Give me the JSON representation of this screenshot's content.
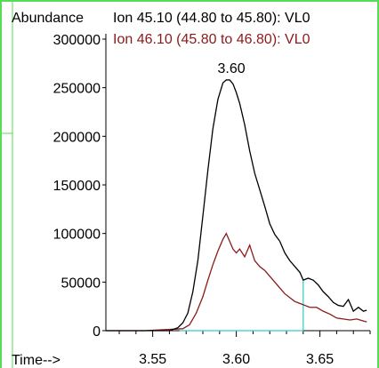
{
  "chart_data": {
    "type": "line",
    "ylabel": "Abundance",
    "xlabel": "Time-->",
    "xlim": [
      3.522,
      3.68
    ],
    "ylim": [
      0,
      300000
    ],
    "grid": false,
    "legend_position": "top",
    "x_ticks": [
      "3.55",
      "3.60",
      "3.65"
    ],
    "y_ticks": [
      "0",
      "50000",
      "100000",
      "150000",
      "200000",
      "250000",
      "300000"
    ],
    "peak_label": "3.60",
    "peak_x": 3.596,
    "peak_y": 258000,
    "series": [
      {
        "name": "Ion  45.10 (44.80 to 45.80): VL0",
        "color": "#000000",
        "x": [
          3.522,
          3.545,
          3.56,
          3.565,
          3.568,
          3.571,
          3.574,
          3.577,
          3.58,
          3.583,
          3.586,
          3.589,
          3.592,
          3.594,
          3.596,
          3.598,
          3.6,
          3.602,
          3.605,
          3.608,
          3.611,
          3.614,
          3.617,
          3.62,
          3.623,
          3.626,
          3.629,
          3.632,
          3.635,
          3.638,
          3.64,
          3.643,
          3.646,
          3.649,
          3.652,
          3.655,
          3.658,
          3.661,
          3.664,
          3.667,
          3.67,
          3.673,
          3.676,
          3.678
        ],
        "y": [
          0,
          0,
          0,
          3000,
          8000,
          18000,
          40000,
          72000,
          118000,
          165000,
          208000,
          238000,
          255000,
          258000,
          258000,
          254000,
          245000,
          234000,
          212000,
          185000,
          162000,
          145000,
          128000,
          110000,
          99000,
          92000,
          80000,
          72000,
          66000,
          60000,
          52000,
          54000,
          52000,
          47000,
          40000,
          35000,
          29000,
          26000,
          25000,
          32000,
          20000,
          24000,
          20000,
          21000
        ]
      },
      {
        "name": "Ion  46.10 (45.80 to 46.80): VL0",
        "color": "#8b1a1a",
        "x": [
          3.522,
          3.545,
          3.568,
          3.572,
          3.576,
          3.58,
          3.583,
          3.586,
          3.589,
          3.592,
          3.594,
          3.596,
          3.598,
          3.6,
          3.602,
          3.605,
          3.608,
          3.611,
          3.614,
          3.617,
          3.62,
          3.623,
          3.626,
          3.629,
          3.632,
          3.635,
          3.638,
          3.641,
          3.644,
          3.648,
          3.652,
          3.656,
          3.66,
          3.664,
          3.668,
          3.672,
          3.676,
          3.678
        ],
        "y": [
          0,
          0,
          2000,
          6000,
          18000,
          35000,
          52000,
          68000,
          82000,
          94000,
          100000,
          92000,
          84000,
          80000,
          84000,
          76000,
          88000,
          72000,
          66000,
          62000,
          56000,
          50000,
          44000,
          38000,
          34000,
          30000,
          28000,
          26000,
          24000,
          24000,
          20000,
          17000,
          13000,
          12000,
          11000,
          12000,
          10000,
          9000
        ]
      }
    ],
    "integration_baseline": {
      "color": "#33cccc",
      "x": [
        3.566,
        3.64
      ],
      "y_end": 52000
    }
  }
}
